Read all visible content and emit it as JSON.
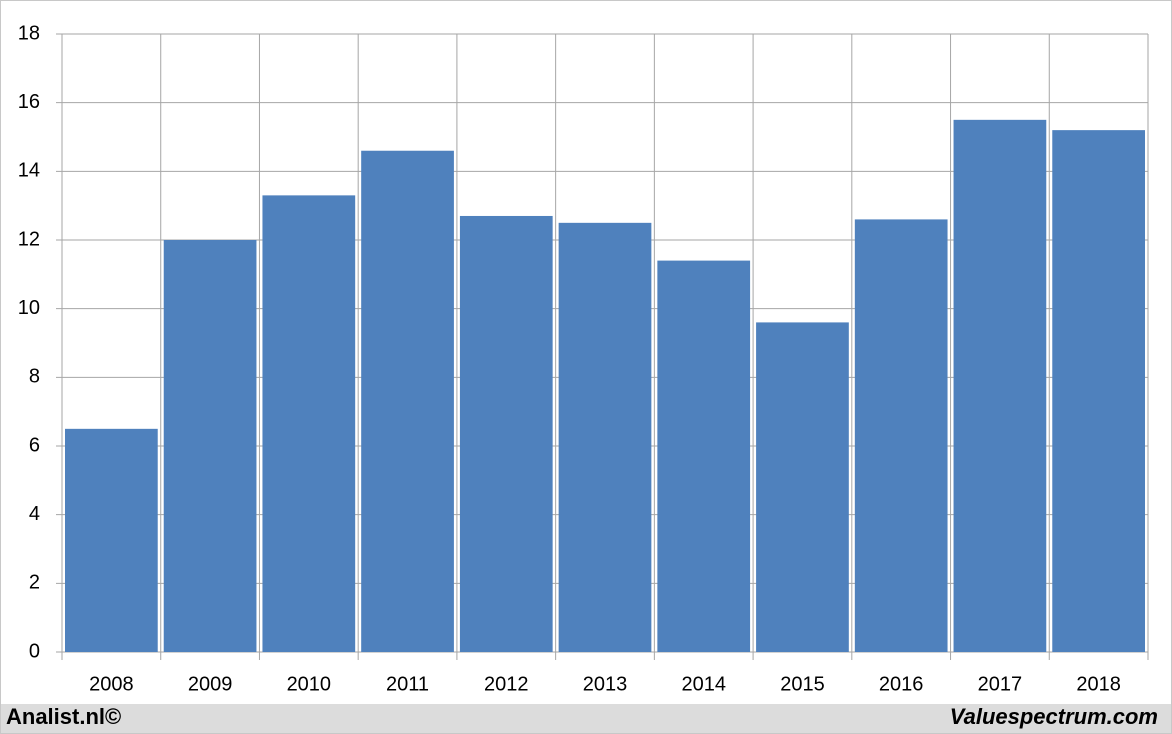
{
  "chart_data": {
    "type": "bar",
    "categories": [
      "2008",
      "2009",
      "2010",
      "2011",
      "2012",
      "2013",
      "2014",
      "2015",
      "2016",
      "2017",
      "2018"
    ],
    "values": [
      6.5,
      12.0,
      13.3,
      14.6,
      12.7,
      12.5,
      11.4,
      9.6,
      12.6,
      15.5,
      15.2
    ],
    "color": "#4f81bd",
    "ylim": [
      0,
      18
    ],
    "yticks": [
      0,
      2,
      4,
      6,
      8,
      10,
      12,
      14,
      16,
      18
    ],
    "grid": true
  },
  "footer": {
    "left": "Analist.nl©",
    "right": "Valuespectrum.com"
  }
}
